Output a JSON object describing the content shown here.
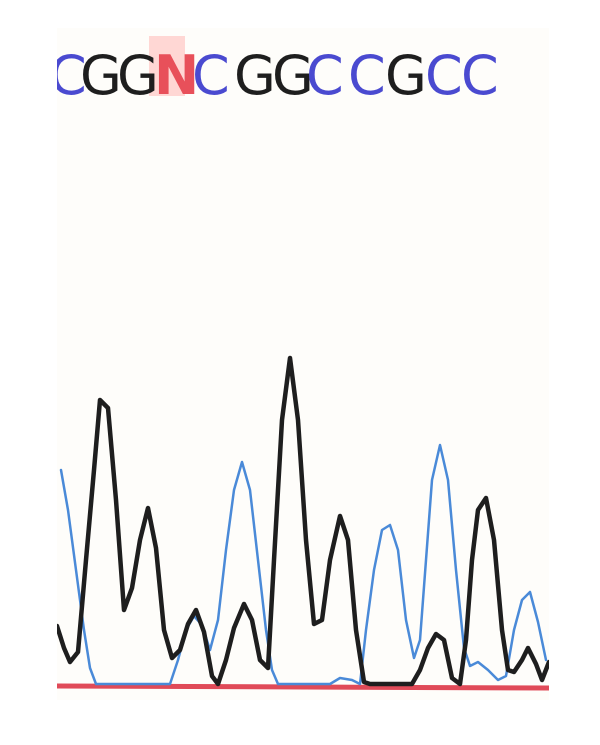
{
  "sequence": {
    "bases": [
      {
        "letter": "C",
        "color": "#4a4ad0"
      },
      {
        "letter": "G",
        "color": "#1e1e1e"
      },
      {
        "letter": "G",
        "color": "#1e1e1e"
      },
      {
        "letter": "N",
        "color": "#e8505a",
        "ambiguous": true
      },
      {
        "letter": "C",
        "color": "#4a4ad0"
      },
      {
        "letter": "G",
        "color": "#1e1e1e"
      },
      {
        "letter": "G",
        "color": "#1e1e1e"
      },
      {
        "letter": "C",
        "color": "#4a4ad0"
      },
      {
        "letter": "C",
        "color": "#4a4ad0"
      },
      {
        "letter": "G",
        "color": "#1e1e1e"
      },
      {
        "letter": "C",
        "color": "#4a4ad0"
      },
      {
        "letter": "C",
        "color": "#4a4ad0"
      }
    ]
  },
  "traces": {
    "black_color": "#1e1e1e",
    "blue_color": "#4a8ad8",
    "red_color": "#e04a58",
    "panel_color": "#fefdfa"
  }
}
